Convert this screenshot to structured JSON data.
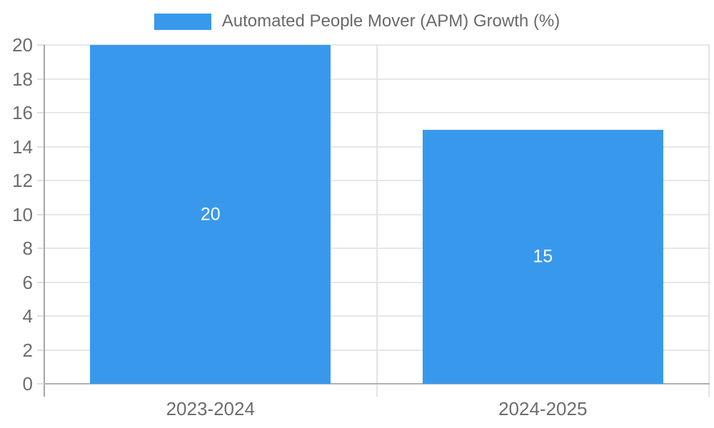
{
  "legend": {
    "label": "Automated People Mover (APM) Growth (%)"
  },
  "chart_data": {
    "type": "bar",
    "title": "Automated People Mover (APM) Growth (%)",
    "categories": [
      "2023-2024",
      "2024-2025"
    ],
    "series": [
      {
        "name": "Automated People Mover (APM) Growth (%)",
        "values": [
          20,
          15
        ]
      }
    ],
    "value_labels": [
      "20",
      "15"
    ],
    "xlabel": "",
    "ylabel": "",
    "ylim": [
      0,
      20
    ],
    "ytick_step": 2,
    "yticks": [
      0,
      2,
      4,
      6,
      8,
      10,
      12,
      14,
      16,
      18,
      20
    ],
    "grid": true,
    "legend_position": "top",
    "colors": {
      "bar": "#3899EC",
      "bar_label": "#FFFFFF",
      "axis_text": "#6D6D6D",
      "grid": "#E7E7E7",
      "axis_line": "#ABABAB"
    }
  }
}
